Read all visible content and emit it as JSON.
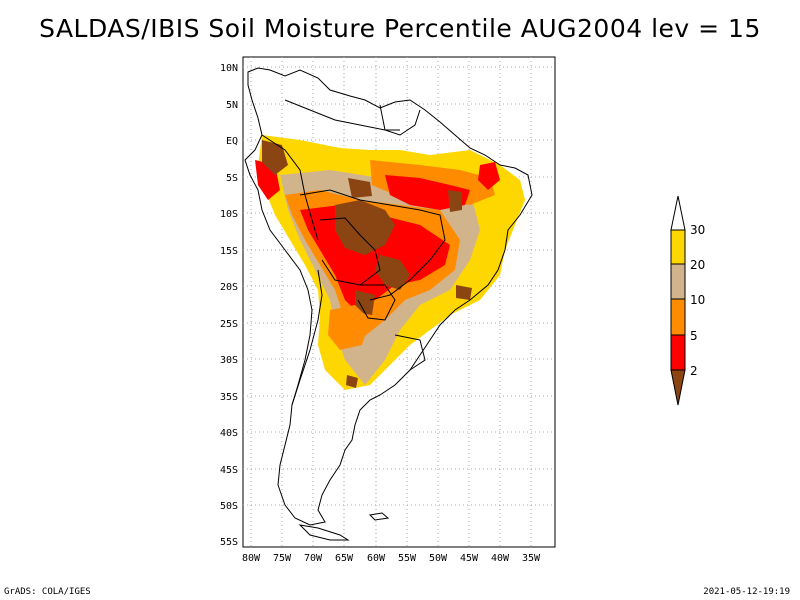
{
  "title": "SALDAS/IBIS Soil Moisture Percentile AUG2004 lev = 15",
  "footer_left": "GrADS: COLA/IGES",
  "footer_right": "2021-05-12-19:19",
  "lat_ticks": [
    "10N",
    "5N",
    "EQ",
    "5S",
    "10S",
    "15S",
    "20S",
    "25S",
    "30S",
    "35S",
    "40S",
    "45S",
    "50S",
    "55S"
  ],
  "lon_ticks": [
    "80W",
    "75W",
    "70W",
    "65W",
    "60W",
    "55W",
    "50W",
    "45W",
    "40W",
    "35W"
  ],
  "colorbar": {
    "labels": [
      "2",
      "5",
      "10",
      "20",
      "30"
    ],
    "colors": {
      "lt2": "#8b4513",
      "b2_5": "#ff0000",
      "b5_10": "#ff8c00",
      "b10_20": "#d2b48c",
      "b20_30": "#ffd700",
      "gt30": "#ffffff"
    }
  },
  "colors": {
    "coast": "#000000",
    "grid": "#9a9a9a"
  }
}
